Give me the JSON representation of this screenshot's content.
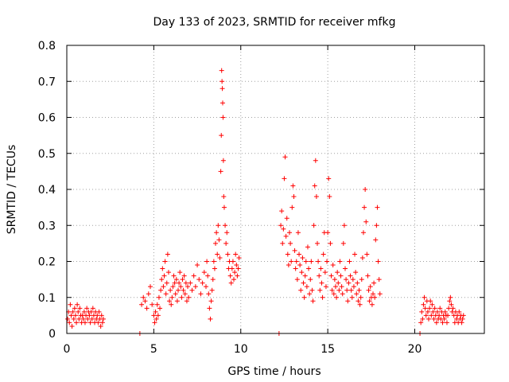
{
  "chart_data": {
    "type": "scatter",
    "title": "Day 133 of 2023, SRMTID for receiver mfkg",
    "xlabel": "GPS time / hours",
    "ylabel": "SRMTID / TECUs",
    "xlim": [
      0,
      24
    ],
    "ylim": [
      0,
      0.8
    ],
    "grid": true,
    "x_ticks": [
      0,
      5,
      10,
      15,
      20
    ],
    "x_tick_labels": [
      "0",
      "5",
      "10",
      "15",
      "20"
    ],
    "y_ticks": [
      0,
      0.1,
      0.2,
      0.3,
      0.4,
      0.5,
      0.6,
      0.7,
      0.8
    ],
    "y_tick_labels": [
      "0",
      "0.1",
      "0.2",
      "0.3",
      "0.4",
      "0.5",
      "0.6",
      "0.7",
      "0.8"
    ],
    "marker": "+",
    "series": [
      {
        "name": "SRMTID",
        "color": "#ff0000",
        "points": [
          [
            0.05,
            0.04
          ],
          [
            0.1,
            0.06
          ],
          [
            0.15,
            0.03
          ],
          [
            0.2,
            0.08
          ],
          [
            0.25,
            0.05
          ],
          [
            0.3,
            0.02
          ],
          [
            0.35,
            0.06
          ],
          [
            0.4,
            0.04
          ],
          [
            0.45,
            0.07
          ],
          [
            0.5,
            0.05
          ],
          [
            0.55,
            0.03
          ],
          [
            0.6,
            0.08
          ],
          [
            0.65,
            0.06
          ],
          [
            0.7,
            0.04
          ],
          [
            0.75,
            0.07
          ],
          [
            0.8,
            0.05
          ],
          [
            0.85,
            0.03
          ],
          [
            0.9,
            0.05
          ],
          [
            0.95,
            0.04
          ],
          [
            1.0,
            0.06
          ],
          [
            1.05,
            0.03
          ],
          [
            1.1,
            0.05
          ],
          [
            1.15,
            0.07
          ],
          [
            1.2,
            0.04
          ],
          [
            1.25,
            0.06
          ],
          [
            1.3,
            0.05
          ],
          [
            1.35,
            0.03
          ],
          [
            1.4,
            0.06
          ],
          [
            1.45,
            0.04
          ],
          [
            1.5,
            0.07
          ],
          [
            1.55,
            0.05
          ],
          [
            1.6,
            0.03
          ],
          [
            1.65,
            0.06
          ],
          [
            1.7,
            0.04
          ],
          [
            1.75,
            0.05
          ],
          [
            1.8,
            0.03
          ],
          [
            1.85,
            0.06
          ],
          [
            1.9,
            0.04
          ],
          [
            1.95,
            0.02
          ],
          [
            2.0,
            0.05
          ],
          [
            2.05,
            0.03
          ],
          [
            2.1,
            0.04
          ],
          [
            4.2,
            0.0
          ],
          [
            4.3,
            0.08
          ],
          [
            4.4,
            0.1
          ],
          [
            4.5,
            0.09
          ],
          [
            4.6,
            0.07
          ],
          [
            4.7,
            0.11
          ],
          [
            4.8,
            0.13
          ],
          [
            4.9,
            0.08
          ],
          [
            5.0,
            0.05
          ],
          [
            5.05,
            0.03
          ],
          [
            5.1,
            0.06
          ],
          [
            5.15,
            0.04
          ],
          [
            5.2,
            0.08
          ],
          [
            5.25,
            0.05
          ],
          [
            5.3,
            0.1
          ],
          [
            5.35,
            0.07
          ],
          [
            5.4,
            0.12
          ],
          [
            5.45,
            0.15
          ],
          [
            5.5,
            0.18
          ],
          [
            5.55,
            0.13
          ],
          [
            5.6,
            0.16
          ],
          [
            5.65,
            0.2
          ],
          [
            5.7,
            0.11
          ],
          [
            5.75,
            0.14
          ],
          [
            5.8,
            0.22
          ],
          [
            5.85,
            0.17
          ],
          [
            5.9,
            0.09
          ],
          [
            5.95,
            0.12
          ],
          [
            6.0,
            0.08
          ],
          [
            6.05,
            0.1
          ],
          [
            6.1,
            0.13
          ],
          [
            6.15,
            0.16
          ],
          [
            6.2,
            0.14
          ],
          [
            6.25,
            0.11
          ],
          [
            6.3,
            0.15
          ],
          [
            6.35,
            0.09
          ],
          [
            6.4,
            0.12
          ],
          [
            6.45,
            0.14
          ],
          [
            6.5,
            0.17
          ],
          [
            6.55,
            0.13
          ],
          [
            6.6,
            0.1
          ],
          [
            6.65,
            0.15
          ],
          [
            6.7,
            0.12
          ],
          [
            6.75,
            0.16
          ],
          [
            6.8,
            0.11
          ],
          [
            6.85,
            0.14
          ],
          [
            6.9,
            0.09
          ],
          [
            6.95,
            0.13
          ],
          [
            7.0,
            0.1
          ],
          [
            7.1,
            0.14
          ],
          [
            7.2,
            0.12
          ],
          [
            7.3,
            0.16
          ],
          [
            7.4,
            0.13
          ],
          [
            7.5,
            0.19
          ],
          [
            7.6,
            0.15
          ],
          [
            7.7,
            0.11
          ],
          [
            7.8,
            0.14
          ],
          [
            7.9,
            0.17
          ],
          [
            8.0,
            0.13
          ],
          [
            8.05,
            0.2
          ],
          [
            8.1,
            0.16
          ],
          [
            8.15,
            0.11
          ],
          [
            8.2,
            0.07
          ],
          [
            8.25,
            0.04
          ],
          [
            8.3,
            0.09
          ],
          [
            8.35,
            0.12
          ],
          [
            8.4,
            0.15
          ],
          [
            8.45,
            0.2
          ],
          [
            8.5,
            0.18
          ],
          [
            8.55,
            0.25
          ],
          [
            8.6,
            0.28
          ],
          [
            8.65,
            0.22
          ],
          [
            8.7,
            0.3
          ],
          [
            8.75,
            0.26
          ],
          [
            8.8,
            0.21
          ],
          [
            8.85,
            0.45
          ],
          [
            8.88,
            0.55
          ],
          [
            8.9,
            0.73
          ],
          [
            8.92,
            0.7
          ],
          [
            8.94,
            0.68
          ],
          [
            8.96,
            0.64
          ],
          [
            8.98,
            0.6
          ],
          [
            9.0,
            0.48
          ],
          [
            9.02,
            0.38
          ],
          [
            9.05,
            0.35
          ],
          [
            9.1,
            0.3
          ],
          [
            9.15,
            0.25
          ],
          [
            9.2,
            0.28
          ],
          [
            9.25,
            0.22
          ],
          [
            9.3,
            0.18
          ],
          [
            9.35,
            0.2
          ],
          [
            9.4,
            0.16
          ],
          [
            9.45,
            0.14
          ],
          [
            9.5,
            0.18
          ],
          [
            9.55,
            0.2
          ],
          [
            9.6,
            0.15
          ],
          [
            9.65,
            0.17
          ],
          [
            9.7,
            0.22
          ],
          [
            9.75,
            0.19
          ],
          [
            9.8,
            0.16
          ],
          [
            9.85,
            0.18
          ],
          [
            9.9,
            0.21
          ],
          [
            12.2,
            0.0
          ],
          [
            12.3,
            0.3
          ],
          [
            12.35,
            0.34
          ],
          [
            12.4,
            0.25
          ],
          [
            12.45,
            0.29
          ],
          [
            12.5,
            0.43
          ],
          [
            12.55,
            0.49
          ],
          [
            12.6,
            0.27
          ],
          [
            12.65,
            0.32
          ],
          [
            12.7,
            0.22
          ],
          [
            12.75,
            0.19
          ],
          [
            12.8,
            0.28
          ],
          [
            12.85,
            0.25
          ],
          [
            12.9,
            0.2
          ],
          [
            12.95,
            0.35
          ],
          [
            13.0,
            0.41
          ],
          [
            13.05,
            0.38
          ],
          [
            13.1,
            0.23
          ],
          [
            13.15,
            0.18
          ],
          [
            13.2,
            0.2
          ],
          [
            13.25,
            0.15
          ],
          [
            13.3,
            0.28
          ],
          [
            13.35,
            0.22
          ],
          [
            13.4,
            0.19
          ],
          [
            13.45,
            0.12
          ],
          [
            13.5,
            0.17
          ],
          [
            13.55,
            0.21
          ],
          [
            13.6,
            0.14
          ],
          [
            13.65,
            0.1
          ],
          [
            13.7,
            0.16
          ],
          [
            13.75,
            0.2
          ],
          [
            13.8,
            0.13
          ],
          [
            13.85,
            0.24
          ],
          [
            13.9,
            0.18
          ],
          [
            13.95,
            0.11
          ],
          [
            14.0,
            0.15
          ],
          [
            14.05,
            0.2
          ],
          [
            14.1,
            0.12
          ],
          [
            14.15,
            0.09
          ],
          [
            14.2,
            0.3
          ],
          [
            14.25,
            0.41
          ],
          [
            14.3,
            0.48
          ],
          [
            14.35,
            0.38
          ],
          [
            14.4,
            0.25
          ],
          [
            14.45,
            0.2
          ],
          [
            14.5,
            0.16
          ],
          [
            14.55,
            0.12
          ],
          [
            14.6,
            0.18
          ],
          [
            14.65,
            0.14
          ],
          [
            14.7,
            0.1
          ],
          [
            14.75,
            0.22
          ],
          [
            14.8,
            0.28
          ],
          [
            14.85,
            0.17
          ],
          [
            14.9,
            0.13
          ],
          [
            14.95,
            0.2
          ],
          [
            15.0,
            0.28
          ],
          [
            15.05,
            0.43
          ],
          [
            15.1,
            0.38
          ],
          [
            15.15,
            0.25
          ],
          [
            15.2,
            0.16
          ],
          [
            15.25,
            0.12
          ],
          [
            15.3,
            0.19
          ],
          [
            15.35,
            0.11
          ],
          [
            15.4,
            0.15
          ],
          [
            15.45,
            0.13
          ],
          [
            15.5,
            0.1
          ],
          [
            15.55,
            0.17
          ],
          [
            15.6,
            0.14
          ],
          [
            15.65,
            0.12
          ],
          [
            15.7,
            0.2
          ],
          [
            15.75,
            0.16
          ],
          [
            15.8,
            0.13
          ],
          [
            15.85,
            0.11
          ],
          [
            15.9,
            0.25
          ],
          [
            15.95,
            0.3
          ],
          [
            16.0,
            0.18
          ],
          [
            16.05,
            0.15
          ],
          [
            16.1,
            0.12
          ],
          [
            16.15,
            0.09
          ],
          [
            16.2,
            0.14
          ],
          [
            16.25,
            0.2
          ],
          [
            16.3,
            0.16
          ],
          [
            16.35,
            0.12
          ],
          [
            16.4,
            0.1
          ],
          [
            16.45,
            0.15
          ],
          [
            16.5,
            0.13
          ],
          [
            16.55,
            0.22
          ],
          [
            16.6,
            0.17
          ],
          [
            16.65,
            0.11
          ],
          [
            16.7,
            0.14
          ],
          [
            16.75,
            0.09
          ],
          [
            16.8,
            0.12
          ],
          [
            16.85,
            0.08
          ],
          [
            16.9,
            0.1
          ],
          [
            16.95,
            0.15
          ],
          [
            17.0,
            0.21
          ],
          [
            17.05,
            0.28
          ],
          [
            17.1,
            0.35
          ],
          [
            17.15,
            0.4
          ],
          [
            17.2,
            0.31
          ],
          [
            17.25,
            0.22
          ],
          [
            17.3,
            0.16
          ],
          [
            17.35,
            0.12
          ],
          [
            17.4,
            0.09
          ],
          [
            17.45,
            0.13
          ],
          [
            17.5,
            0.1
          ],
          [
            17.55,
            0.08
          ],
          [
            17.6,
            0.11
          ],
          [
            17.65,
            0.14
          ],
          [
            17.7,
            0.1
          ],
          [
            17.75,
            0.26
          ],
          [
            17.8,
            0.3
          ],
          [
            17.85,
            0.35
          ],
          [
            17.9,
            0.2
          ],
          [
            17.95,
            0.15
          ],
          [
            18.0,
            0.11
          ],
          [
            20.3,
            0.0
          ],
          [
            20.35,
            0.03
          ],
          [
            20.4,
            0.06
          ],
          [
            20.45,
            0.04
          ],
          [
            20.5,
            0.08
          ],
          [
            20.55,
            0.1
          ],
          [
            20.6,
            0.07
          ],
          [
            20.65,
            0.05
          ],
          [
            20.7,
            0.09
          ],
          [
            20.75,
            0.06
          ],
          [
            20.8,
            0.04
          ],
          [
            20.85,
            0.07
          ],
          [
            20.9,
            0.09
          ],
          [
            20.95,
            0.05
          ],
          [
            21.0,
            0.08
          ],
          [
            21.05,
            0.06
          ],
          [
            21.1,
            0.04
          ],
          [
            21.15,
            0.07
          ],
          [
            21.2,
            0.05
          ],
          [
            21.25,
            0.03
          ],
          [
            21.3,
            0.06
          ],
          [
            21.35,
            0.04
          ],
          [
            21.4,
            0.05
          ],
          [
            21.45,
            0.07
          ],
          [
            21.5,
            0.04
          ],
          [
            21.55,
            0.06
          ],
          [
            21.6,
            0.03
          ],
          [
            21.65,
            0.05
          ],
          [
            21.7,
            0.04
          ],
          [
            21.75,
            0.06
          ],
          [
            21.8,
            0.05
          ],
          [
            21.85,
            0.03
          ],
          [
            21.9,
            0.05
          ],
          [
            21.95,
            0.07
          ],
          [
            22.0,
            0.09
          ],
          [
            22.05,
            0.1
          ],
          [
            22.1,
            0.08
          ],
          [
            22.15,
            0.06
          ],
          [
            22.2,
            0.07
          ],
          [
            22.25,
            0.05
          ],
          [
            22.3,
            0.03
          ],
          [
            22.35,
            0.06
          ],
          [
            22.4,
            0.04
          ],
          [
            22.45,
            0.05
          ],
          [
            22.5,
            0.03
          ],
          [
            22.55,
            0.06
          ],
          [
            22.6,
            0.04
          ],
          [
            22.65,
            0.05
          ],
          [
            22.7,
            0.03
          ],
          [
            22.75,
            0.04
          ],
          [
            22.8,
            0.05
          ]
        ]
      }
    ]
  }
}
